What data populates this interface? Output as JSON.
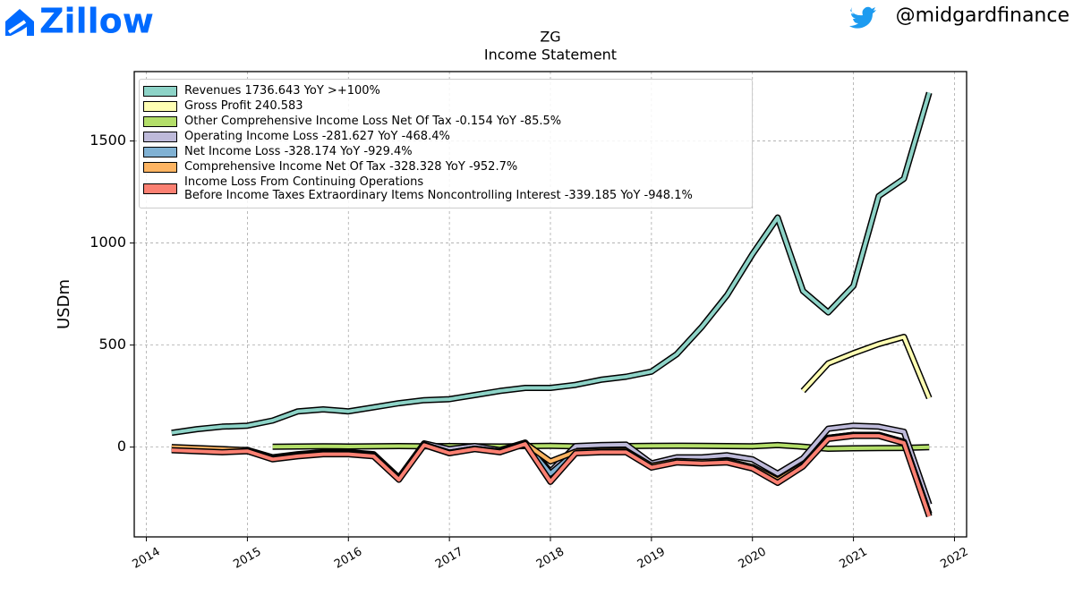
{
  "logo_text": "Zillow",
  "handle": "@midgardfinance",
  "chart_data": {
    "type": "line",
    "title": "ZG",
    "subtitle": "Income Statement",
    "ylabel": "USDm",
    "x": [
      2014.25,
      2014.5,
      2014.75,
      2015.0,
      2015.25,
      2015.5,
      2015.75,
      2016.0,
      2016.25,
      2016.5,
      2016.75,
      2017.0,
      2017.25,
      2017.5,
      2017.75,
      2018.0,
      2018.25,
      2018.5,
      2018.75,
      2019.0,
      2019.25,
      2019.5,
      2019.75,
      2020.0,
      2020.25,
      2020.5,
      2020.75,
      2021.0,
      2021.25,
      2021.5,
      2021.75
    ],
    "xlim": [
      2013.88,
      2022.12
    ],
    "xticks": [
      2014,
      2015,
      2016,
      2017,
      2018,
      2019,
      2020,
      2021,
      2022
    ],
    "ylim": [
      -440,
      1840
    ],
    "yticks": [
      0,
      500,
      1000,
      1500
    ],
    "grid": true,
    "legend": "upper left",
    "series": [
      {
        "name": "Revenues 1736.643 YoY >+100%",
        "color": "#8dd3c7",
        "values": [
          70,
          88,
          100,
          105,
          130,
          175,
          185,
          175,
          195,
          215,
          230,
          235,
          255,
          275,
          290,
          290,
          305,
          330,
          345,
          370,
          455,
          590,
          745,
          945,
          1125,
          765,
          660,
          790,
          1230,
          1315,
          1736.643
        ]
      },
      {
        "name": "Gross Profit 240.583",
        "color": "#ffffb3",
        "values": [
          null,
          null,
          null,
          null,
          null,
          null,
          null,
          null,
          null,
          null,
          null,
          null,
          null,
          null,
          null,
          null,
          null,
          null,
          null,
          null,
          null,
          null,
          null,
          null,
          null,
          275,
          410,
          460,
          505,
          540,
          240.583
        ]
      },
      {
        "name": "Other Comprehensive Income Loss Net Of Tax -0.154 YoY -85.5%",
        "color": "#b3de69",
        "values": [
          null,
          null,
          null,
          null,
          2,
          3,
          4,
          3,
          4,
          5,
          4,
          5,
          4,
          3,
          5,
          6,
          4,
          3,
          5,
          6,
          7,
          6,
          5,
          4,
          10,
          2,
          -8,
          -6,
          -5,
          -4,
          -0.154
        ]
      },
      {
        "name": "Operating Income Loss -281.627 YoY -468.4%",
        "color": "#bebada",
        "values": [
          -8,
          -12,
          -18,
          -14,
          -50,
          -35,
          -25,
          -25,
          -35,
          -150,
          18,
          -10,
          5,
          -15,
          22,
          -120,
          5,
          10,
          12,
          -80,
          -50,
          -50,
          -40,
          -60,
          -130,
          -55,
          90,
          105,
          100,
          75,
          -281.627
        ]
      },
      {
        "name": "Net Income Loss -328.174 YoY -929.4%",
        "color": "#80b1d3",
        "values": [
          -12,
          -18,
          -22,
          -18,
          -58,
          -42,
          -33,
          -33,
          -42,
          -155,
          12,
          -28,
          -8,
          -22,
          18,
          -130,
          -25,
          -20,
          -20,
          -95,
          -70,
          -75,
          -70,
          -100,
          -165,
          -90,
          45,
          60,
          60,
          25,
          -328.174
        ]
      },
      {
        "name": "Comprehensive Income Net Of Tax -328.328 YoY -952.7%",
        "color": "#fdb462",
        "values": [
          0,
          -5,
          -10,
          -15,
          -55,
          -40,
          -30,
          -30,
          -40,
          -155,
          12,
          -28,
          -8,
          -22,
          18,
          -70,
          -22,
          -18,
          -18,
          -92,
          -68,
          -72,
          -68,
          -98,
          -162,
          -88,
          45,
          60,
          60,
          25,
          -328.328
        ]
      },
      {
        "name": "Income Loss From Continuing Operations\nBefore Income Taxes Extraordinary Items Noncontrolling Interest -339.185 YoY -948.1%",
        "color": "#fb8072",
        "values": [
          -15,
          -20,
          -25,
          -20,
          -60,
          -45,
          -35,
          -35,
          -45,
          -160,
          10,
          -30,
          -10,
          -25,
          15,
          -170,
          -30,
          -25,
          -25,
          -100,
          -75,
          -80,
          -75,
          -105,
          -175,
          -95,
          40,
          55,
          55,
          20,
          -339.185
        ]
      }
    ]
  }
}
